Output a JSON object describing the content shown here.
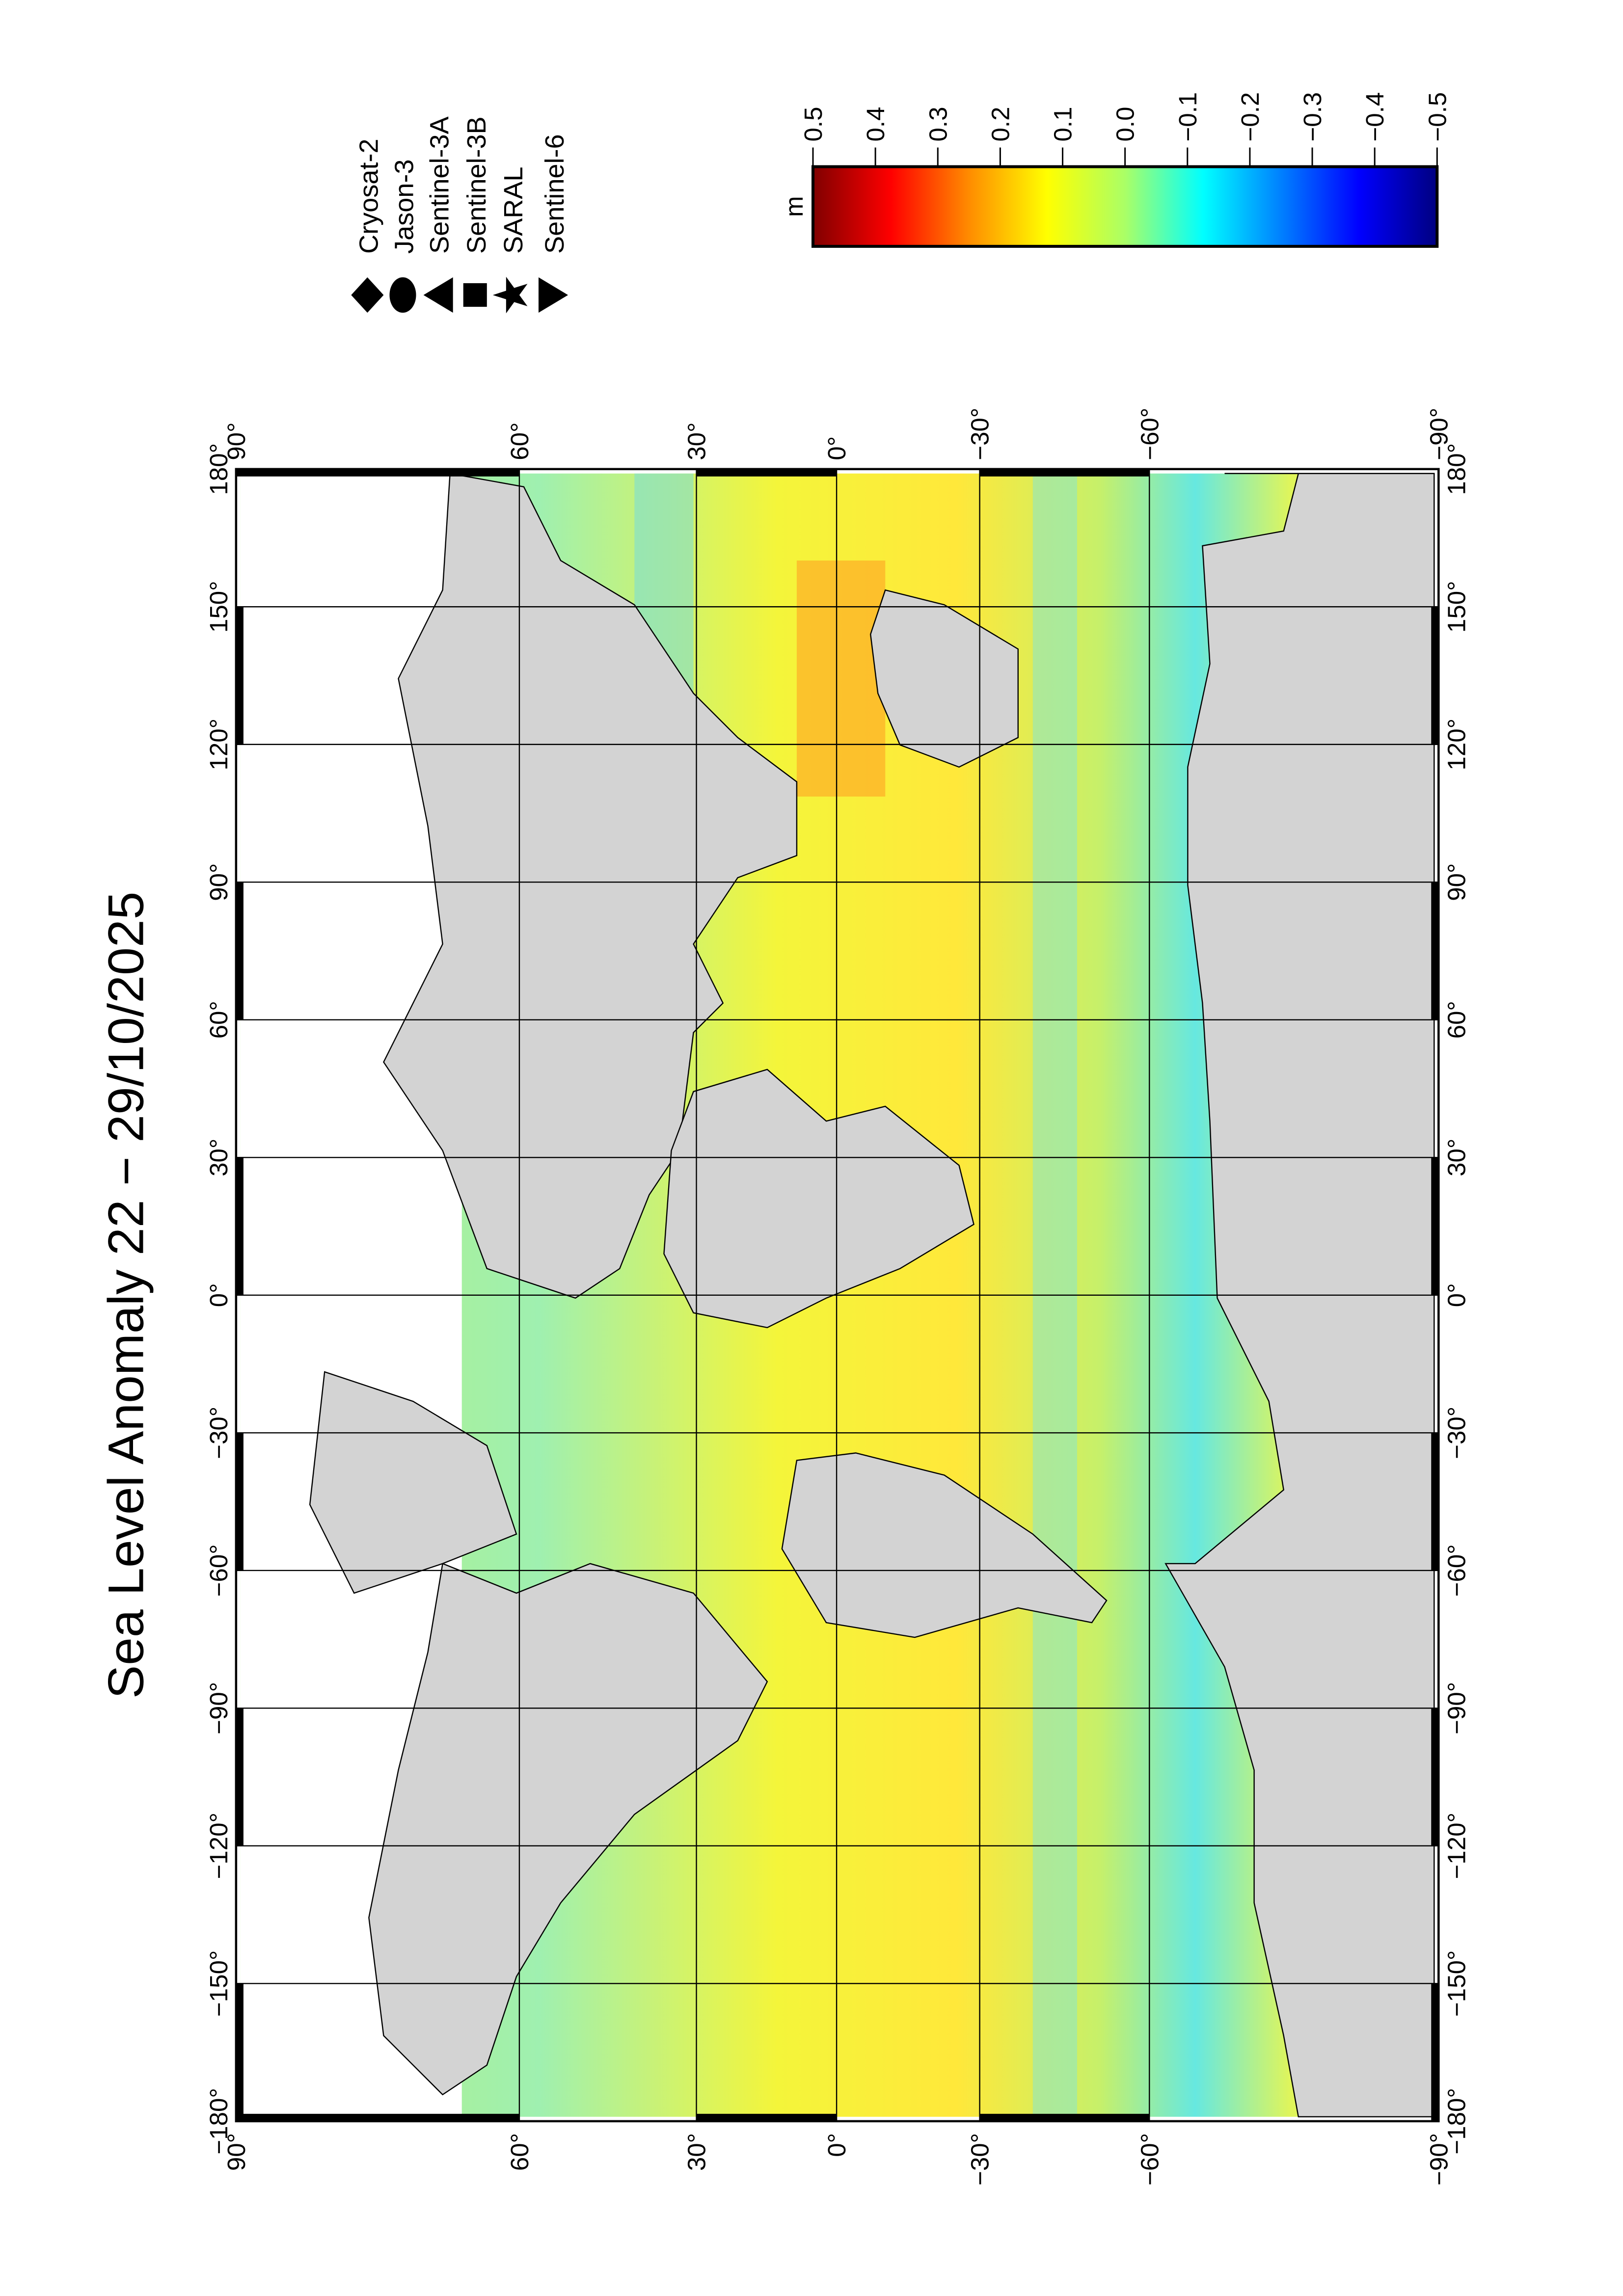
{
  "title": "Sea Level Anomaly 22 − 29/10/2025",
  "colorbar": {
    "unit": "m",
    "ticks": [
      "0.5",
      "0.4",
      "0.3",
      "0.2",
      "0.1",
      "0.0",
      "−0.1",
      "−0.2",
      "−0.3",
      "−0.4",
      "−0.5"
    ],
    "range": [
      0.5,
      -0.5
    ],
    "colors": [
      "#800000",
      "#ff0000",
      "#ff8c00",
      "#ffff00",
      "#aaff66",
      "#00ffff",
      "#0080ff",
      "#0000ff",
      "#000080"
    ]
  },
  "legend": [
    {
      "label": "Cryosat-2",
      "symbol": "diamond"
    },
    {
      "label": "Jason-3",
      "symbol": "circle"
    },
    {
      "label": "Sentinel-3A",
      "symbol": "triangle-left"
    },
    {
      "label": "Sentinel-3B",
      "symbol": "square"
    },
    {
      "label": "SARAL",
      "symbol": "star"
    },
    {
      "label": "Sentinel-6",
      "symbol": "triangle-right"
    }
  ],
  "map": {
    "lat_ticks": [
      "90°",
      "60°",
      "30°",
      "0°",
      "−30°",
      "−60°",
      "−90°"
    ],
    "lon_ticks": [
      "180°",
      "150°",
      "120°",
      "90°",
      "60°",
      "30°",
      "0°",
      "−30°",
      "−60°",
      "−90°",
      "−120°",
      "−150°",
      "−180°"
    ],
    "land_color": "#d3d3d3",
    "ocean_color": "#e6f54a"
  }
}
